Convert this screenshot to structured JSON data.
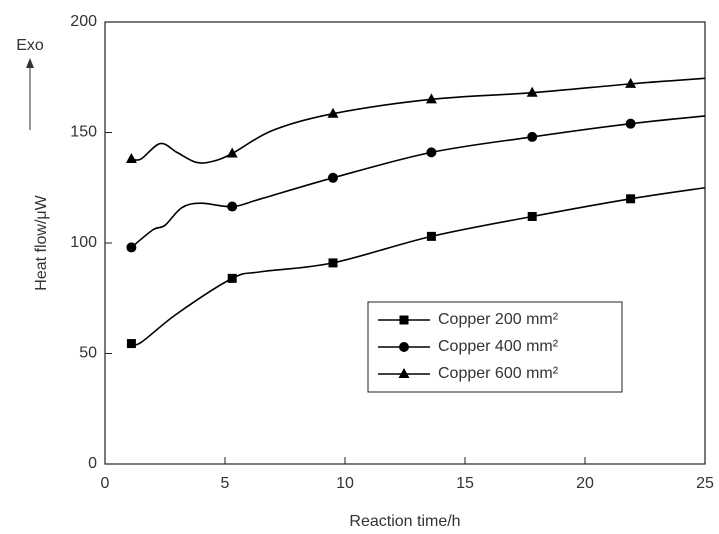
{
  "chart_data": {
    "type": "line",
    "xlabel": "Reaction time/h",
    "ylabel": "Heat flow/μW",
    "annotation": "Exo",
    "xlim": [
      0,
      25
    ],
    "xticks": [
      0,
      5,
      10,
      15,
      20,
      25
    ],
    "ylim": [
      0,
      200
    ],
    "yticks": [
      0,
      50,
      100,
      150,
      200
    ],
    "legend": "lower right",
    "series": [
      {
        "name": "Copper 200 mm²",
        "color": "#000000",
        "marker": "square",
        "x": [
          1.1,
          1.5,
          3,
          5.3,
          6.5,
          9.5,
          13.6,
          17.8,
          21.9,
          25
        ],
        "values": [
          54.5,
          55,
          68,
          84,
          87,
          91,
          103,
          112,
          120,
          125
        ],
        "marker_x": [
          1.1,
          5.3,
          9.5,
          13.6,
          17.8,
          21.9
        ],
        "marker_values": [
          54.5,
          84,
          91,
          103,
          112,
          120
        ]
      },
      {
        "name": "Copper 400 mm²",
        "color": "#000000",
        "marker": "circle",
        "x": [
          1.1,
          2,
          2.5,
          3.2,
          4,
          5.3,
          6.5,
          9.5,
          13.6,
          17.8,
          21.9,
          25
        ],
        "values": [
          98,
          106,
          108,
          116,
          118,
          116.5,
          120,
          129.5,
          141,
          148,
          154,
          157.5
        ],
        "marker_x": [
          1.1,
          5.3,
          9.5,
          13.6,
          17.8,
          21.9
        ],
        "marker_values": [
          98,
          116.5,
          129.5,
          141,
          148,
          154
        ]
      },
      {
        "name": "Copper 600 mm²",
        "color": "#000000",
        "marker": "triangle",
        "x": [
          1.1,
          1.5,
          2.3,
          3,
          3.8,
          4.5,
          5.3,
          7,
          9.5,
          13.6,
          17.8,
          21.9,
          25
        ],
        "values": [
          138,
          138,
          145,
          141,
          136.5,
          137,
          140.5,
          151,
          158.5,
          165,
          168,
          172,
          174.5
        ],
        "marker_x": [
          1.1,
          5.3,
          9.5,
          13.6,
          17.8,
          21.9
        ],
        "marker_values": [
          138,
          140.5,
          158.5,
          165,
          168,
          172
        ]
      }
    ]
  }
}
